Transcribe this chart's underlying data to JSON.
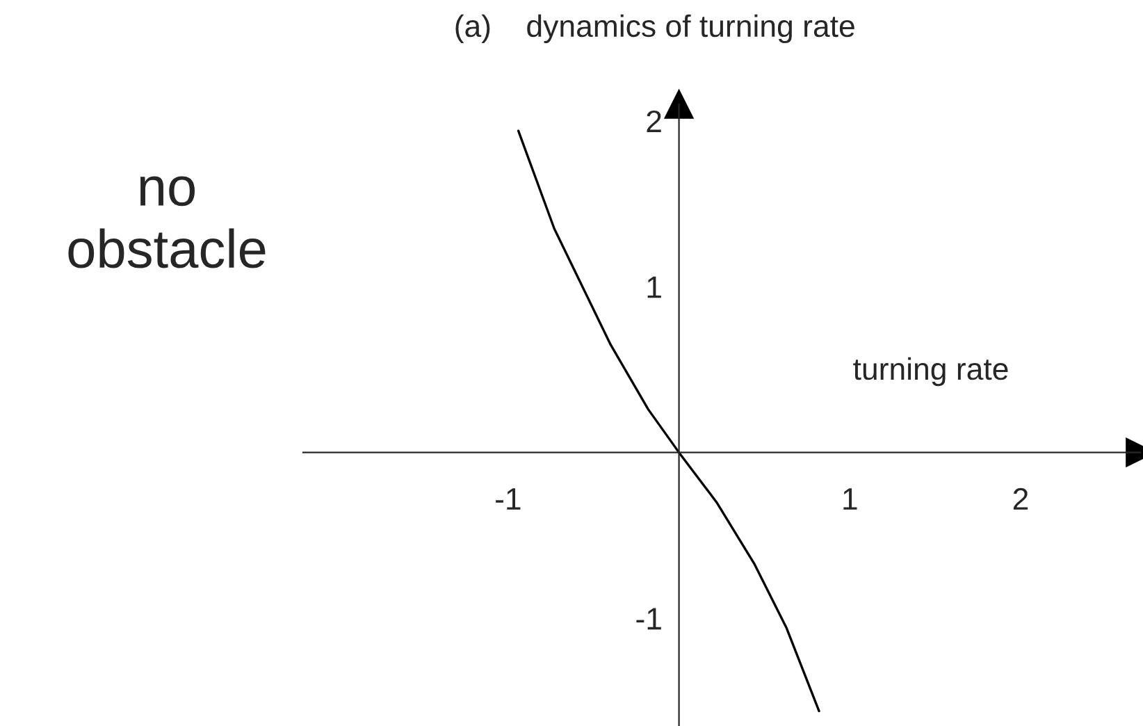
{
  "chart_data": {
    "type": "line",
    "title": "(a)    dynamics of turning rate",
    "xlabel": "turning rate",
    "annotations": [
      "no\nobstacle"
    ],
    "x": [
      -0.94,
      -0.73,
      -0.4,
      -0.18,
      0,
      0.22,
      0.44,
      0.63,
      0.82
    ],
    "series": [
      {
        "color": "#000000",
        "values": [
          1.94,
          1.35,
          0.65,
          0.26,
          0,
          -0.3,
          -0.67,
          -1.06,
          -1.56
        ]
      }
    ],
    "xlim": [
      -2.2,
      2.7
    ],
    "ylim": [
      -1.65,
      2.1
    ],
    "xticks": [
      -1,
      1,
      2
    ],
    "yticks": [
      -1,
      1,
      2
    ],
    "grid": false,
    "legend": false,
    "marker": "none",
    "line_style": "solid"
  }
}
